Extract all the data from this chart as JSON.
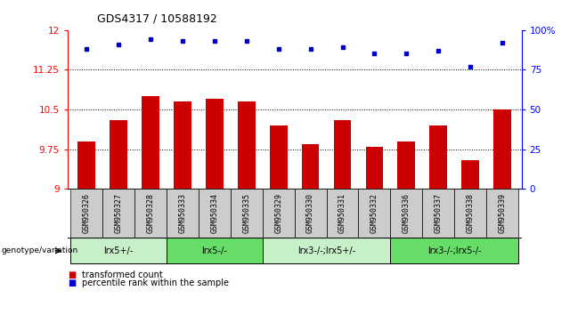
{
  "title": "GDS4317 / 10588192",
  "samples": [
    "GSM950326",
    "GSM950327",
    "GSM950328",
    "GSM950333",
    "GSM950334",
    "GSM950335",
    "GSM950329",
    "GSM950330",
    "GSM950331",
    "GSM950332",
    "GSM950336",
    "GSM950337",
    "GSM950338",
    "GSM950339"
  ],
  "bar_values": [
    9.9,
    10.3,
    10.75,
    10.65,
    10.7,
    10.65,
    10.2,
    9.85,
    10.3,
    9.8,
    9.9,
    10.2,
    9.55,
    10.5
  ],
  "dot_values": [
    88,
    91,
    94,
    93,
    93,
    93,
    88,
    88,
    89,
    85,
    85,
    87,
    77,
    92
  ],
  "bar_color": "#cc0000",
  "dot_color": "#0000cc",
  "ylim_left": [
    9.0,
    12.0
  ],
  "ylim_right": [
    0,
    100
  ],
  "yticks_left": [
    9.0,
    9.75,
    10.5,
    11.25,
    12.0
  ],
  "ytick_labels_left": [
    "9",
    "9.75",
    "10.5",
    "11.25",
    "12"
  ],
  "yticks_right": [
    0,
    25,
    50,
    75,
    100
  ],
  "ytick_labels_right": [
    "0",
    "25",
    "50",
    "75",
    "100%"
  ],
  "hlines": [
    9.75,
    10.5,
    11.25
  ],
  "groups": [
    {
      "label": "lrx5+/-",
      "start": 0,
      "end": 3,
      "color": "#c8f0c8"
    },
    {
      "label": "lrx5-/-",
      "start": 3,
      "end": 6,
      "color": "#66dd66"
    },
    {
      "label": "lrx3-/-;lrx5+/-",
      "start": 6,
      "end": 10,
      "color": "#c8f0c8"
    },
    {
      "label": "lrx3-/-;lrx5-/-",
      "start": 10,
      "end": 14,
      "color": "#66dd66"
    }
  ],
  "genotype_label": "genotype/variation",
  "legend_bar_label": "transformed count",
  "legend_dot_label": "percentile rank within the sample",
  "bg_color": "#ffffff",
  "sample_box_color": "#cccccc"
}
